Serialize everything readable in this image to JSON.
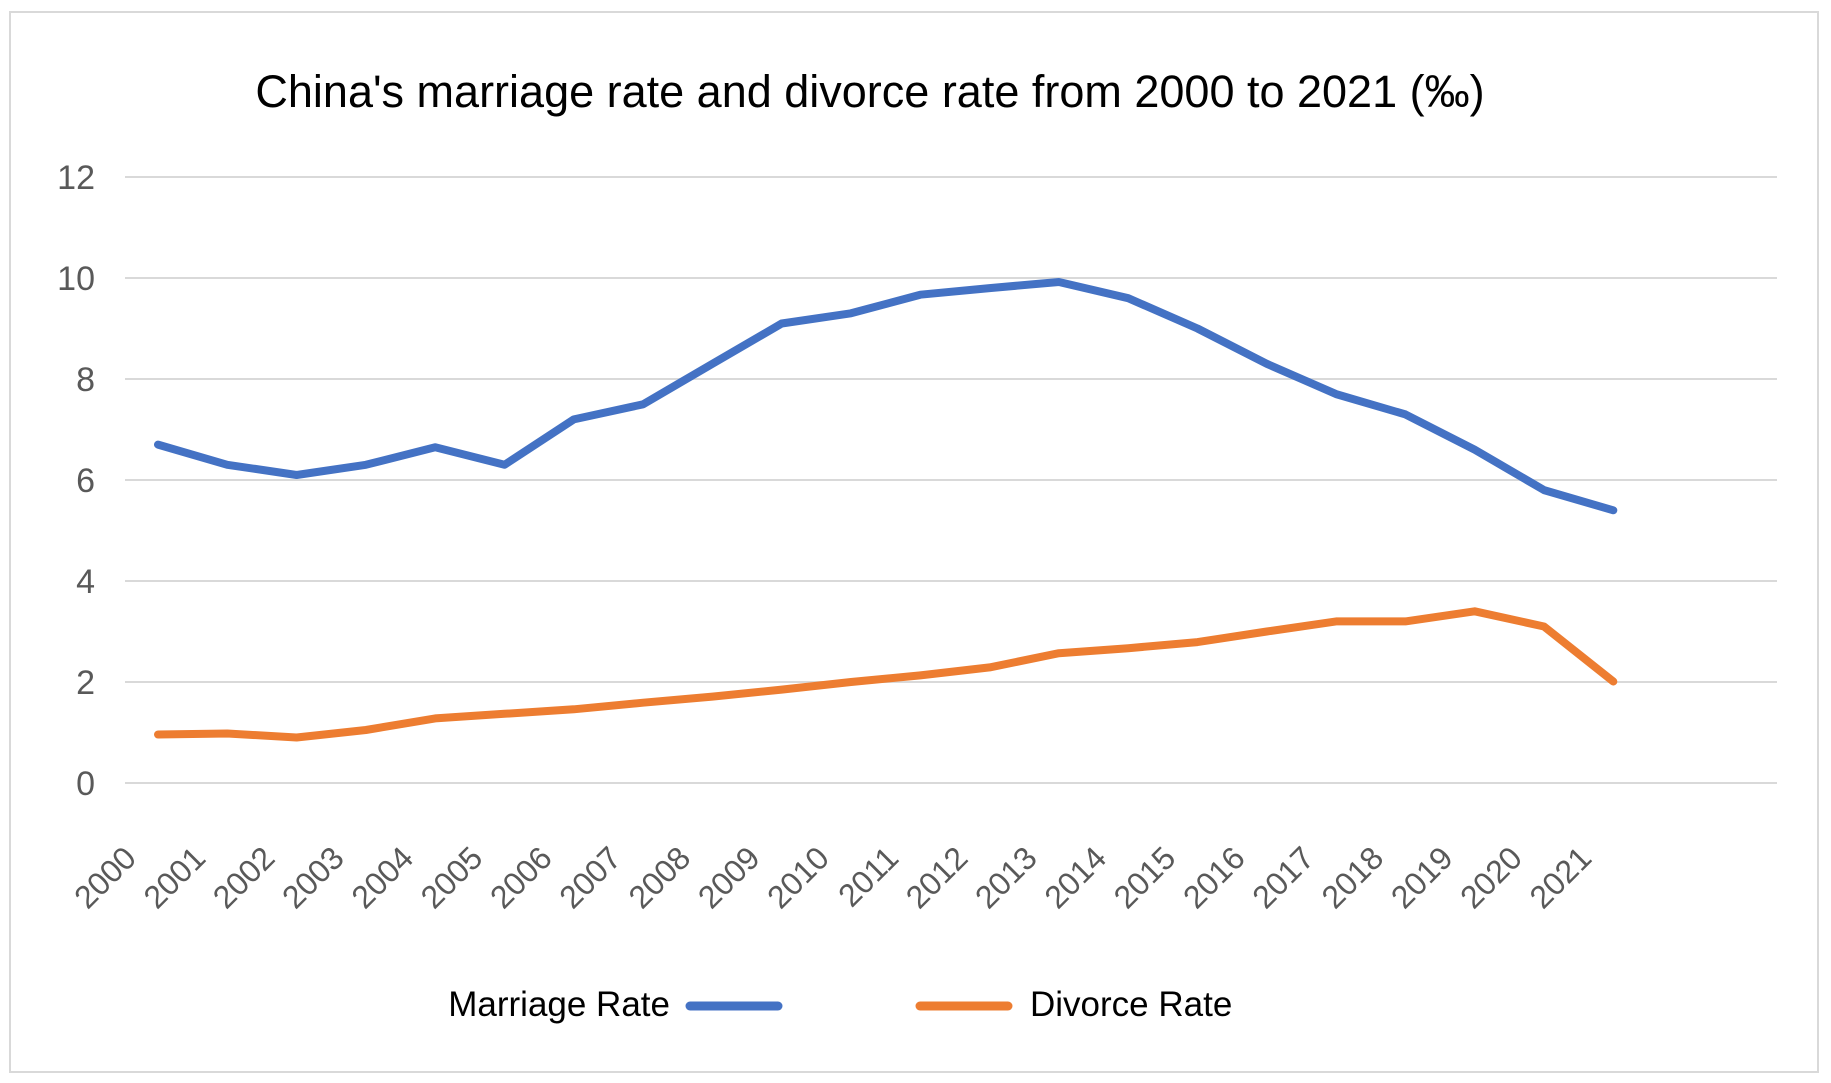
{
  "chart_data": {
    "type": "line",
    "title": "China's marriage rate and divorce rate from 2000 to 2021 (‰)",
    "xlabel": "",
    "ylabel": "",
    "ylim": [
      0,
      12
    ],
    "yticks": [
      0,
      2,
      4,
      6,
      8,
      10,
      12
    ],
    "grid": true,
    "legend_position": "bottom",
    "categories": [
      "2000",
      "2001",
      "2002",
      "2003",
      "2004",
      "2005",
      "2006",
      "2007",
      "2008",
      "2009",
      "2010",
      "2011",
      "2012",
      "2013",
      "2014",
      "2015",
      "2016",
      "2017",
      "2018",
      "2019",
      "2020",
      "2021"
    ],
    "series": [
      {
        "name": "Marriage Rate",
        "color": "#4472C4",
        "values": [
          6.7,
          6.3,
          6.1,
          6.3,
          6.65,
          6.3,
          7.2,
          7.5,
          8.3,
          9.1,
          9.3,
          9.67,
          9.8,
          9.92,
          9.6,
          9.0,
          8.3,
          7.7,
          7.3,
          6.6,
          5.8,
          5.4
        ]
      },
      {
        "name": "Divorce Rate",
        "color": "#ED7D31",
        "values": [
          0.96,
          0.98,
          0.9,
          1.05,
          1.28,
          1.37,
          1.46,
          1.59,
          1.71,
          1.85,
          2.0,
          2.13,
          2.29,
          2.57,
          2.67,
          2.79,
          3.0,
          3.2,
          3.2,
          3.4,
          3.1,
          2.01
        ]
      }
    ]
  }
}
